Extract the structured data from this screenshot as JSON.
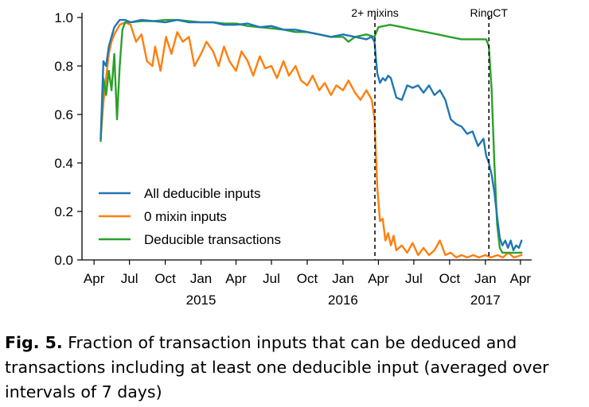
{
  "chart_data": {
    "type": "line",
    "title": "",
    "xlabel": "",
    "ylabel": "",
    "x_range": [
      "2014-03-01",
      "2017-04-30"
    ],
    "ylim": [
      0.0,
      1.0
    ],
    "y_ticks": [
      0.0,
      0.2,
      0.4,
      0.6,
      0.8,
      1.0
    ],
    "y_tick_labels": [
      "0.0",
      "0.2",
      "0.4",
      "0.6",
      "0.8",
      "1.0"
    ],
    "x_ticks": [
      {
        "date": "2014-04-01",
        "label": "Apr"
      },
      {
        "date": "2014-07-01",
        "label": "Jul"
      },
      {
        "date": "2014-10-01",
        "label": "Oct"
      },
      {
        "date": "2015-01-01",
        "label": "Jan"
      },
      {
        "date": "2015-04-01",
        "label": "Apr"
      },
      {
        "date": "2015-07-01",
        "label": "Jul"
      },
      {
        "date": "2015-10-01",
        "label": "Oct"
      },
      {
        "date": "2016-01-01",
        "label": "Jan"
      },
      {
        "date": "2016-04-01",
        "label": "Apr"
      },
      {
        "date": "2016-07-01",
        "label": "Jul"
      },
      {
        "date": "2016-10-01",
        "label": "Oct"
      },
      {
        "date": "2017-01-01",
        "label": "Jan"
      },
      {
        "date": "2017-04-01",
        "label": "Apr"
      }
    ],
    "year_labels": [
      {
        "date": "2015-01-01",
        "label": "2015"
      },
      {
        "date": "2016-01-01",
        "label": "2016"
      },
      {
        "date": "2017-01-01",
        "label": "2017"
      }
    ],
    "grid": false,
    "legend": "lower-left",
    "annotations": [
      {
        "date": "2016-03-23",
        "label": "2+ mixins",
        "style": "dashed-vertical"
      },
      {
        "date": "2017-01-10",
        "label": "RingCT",
        "style": "dashed-vertical"
      }
    ],
    "series": [
      {
        "name": "All deducible inputs",
        "color": "#1f77b4",
        "points": [
          [
            "2014-04-18",
            0.5
          ],
          [
            "2014-04-25",
            0.82
          ],
          [
            "2014-05-02",
            0.8
          ],
          [
            "2014-05-09",
            0.88
          ],
          [
            "2014-05-16",
            0.92
          ],
          [
            "2014-05-23",
            0.96
          ],
          [
            "2014-06-06",
            0.99
          ],
          [
            "2014-06-20",
            0.99
          ],
          [
            "2014-07-04",
            0.98
          ],
          [
            "2014-08-01",
            0.99
          ],
          [
            "2014-09-01",
            0.985
          ],
          [
            "2014-10-01",
            0.98
          ],
          [
            "2014-11-01",
            0.99
          ],
          [
            "2014-12-01",
            0.98
          ],
          [
            "2015-01-01",
            0.98
          ],
          [
            "2015-02-01",
            0.98
          ],
          [
            "2015-03-01",
            0.97
          ],
          [
            "2015-04-01",
            0.97
          ],
          [
            "2015-05-01",
            0.975
          ],
          [
            "2015-06-01",
            0.96
          ],
          [
            "2015-07-01",
            0.965
          ],
          [
            "2015-08-01",
            0.95
          ],
          [
            "2015-09-01",
            0.95
          ],
          [
            "2015-10-01",
            0.94
          ],
          [
            "2015-11-01",
            0.93
          ],
          [
            "2015-12-01",
            0.92
          ],
          [
            "2016-01-01",
            0.93
          ],
          [
            "2016-02-01",
            0.92
          ],
          [
            "2016-03-01",
            0.91
          ],
          [
            "2016-03-15",
            0.92
          ],
          [
            "2016-03-22",
            0.9
          ],
          [
            "2016-03-29",
            0.77
          ],
          [
            "2016-04-05",
            0.73
          ],
          [
            "2016-04-12",
            0.75
          ],
          [
            "2016-04-19",
            0.74
          ],
          [
            "2016-04-26",
            0.76
          ],
          [
            "2016-05-03",
            0.75
          ],
          [
            "2016-05-17",
            0.67
          ],
          [
            "2016-05-31",
            0.66
          ],
          [
            "2016-06-14",
            0.72
          ],
          [
            "2016-06-28",
            0.71
          ],
          [
            "2016-07-12",
            0.72
          ],
          [
            "2016-07-26",
            0.69
          ],
          [
            "2016-08-09",
            0.72
          ],
          [
            "2016-08-23",
            0.68
          ],
          [
            "2016-09-06",
            0.7
          ],
          [
            "2016-09-20",
            0.66
          ],
          [
            "2016-10-04",
            0.58
          ],
          [
            "2016-10-18",
            0.56
          ],
          [
            "2016-11-01",
            0.55
          ],
          [
            "2016-11-15",
            0.52
          ],
          [
            "2016-11-29",
            0.53
          ],
          [
            "2016-12-13",
            0.47
          ],
          [
            "2016-12-27",
            0.5
          ],
          [
            "2017-01-03",
            0.43
          ],
          [
            "2017-01-10",
            0.4
          ],
          [
            "2017-01-17",
            0.35
          ],
          [
            "2017-01-24",
            0.28
          ],
          [
            "2017-01-31",
            0.18
          ],
          [
            "2017-02-07",
            0.09
          ],
          [
            "2017-02-14",
            0.06
          ],
          [
            "2017-02-21",
            0.08
          ],
          [
            "2017-02-28",
            0.05
          ],
          [
            "2017-03-07",
            0.08
          ],
          [
            "2017-03-14",
            0.04
          ],
          [
            "2017-03-21",
            0.06
          ],
          [
            "2017-03-28",
            0.05
          ],
          [
            "2017-04-04",
            0.08
          ]
        ]
      },
      {
        "name": "0 mixin inputs",
        "color": "#ff7f0e",
        "points": [
          [
            "2014-04-18",
            0.5
          ],
          [
            "2014-04-25",
            0.65
          ],
          [
            "2014-05-02",
            0.75
          ],
          [
            "2014-05-09",
            0.85
          ],
          [
            "2014-05-16",
            0.9
          ],
          [
            "2014-05-23",
            0.93
          ],
          [
            "2014-06-06",
            0.97
          ],
          [
            "2014-06-20",
            0.98
          ],
          [
            "2014-07-04",
            0.97
          ],
          [
            "2014-07-18",
            0.9
          ],
          [
            "2014-08-01",
            0.93
          ],
          [
            "2014-08-15",
            0.82
          ],
          [
            "2014-08-29",
            0.8
          ],
          [
            "2014-09-05",
            0.88
          ],
          [
            "2014-09-19",
            0.78
          ],
          [
            "2014-10-03",
            0.92
          ],
          [
            "2014-10-17",
            0.85
          ],
          [
            "2014-11-01",
            0.94
          ],
          [
            "2014-11-15",
            0.9
          ],
          [
            "2014-12-01",
            0.92
          ],
          [
            "2014-12-15",
            0.8
          ],
          [
            "2015-01-01",
            0.85
          ],
          [
            "2015-01-15",
            0.9
          ],
          [
            "2015-02-01",
            0.86
          ],
          [
            "2015-02-15",
            0.8
          ],
          [
            "2015-03-01",
            0.88
          ],
          [
            "2015-03-15",
            0.82
          ],
          [
            "2015-04-01",
            0.78
          ],
          [
            "2015-04-15",
            0.86
          ],
          [
            "2015-05-01",
            0.82
          ],
          [
            "2015-05-15",
            0.76
          ],
          [
            "2015-06-01",
            0.84
          ],
          [
            "2015-06-15",
            0.79
          ],
          [
            "2015-07-01",
            0.8
          ],
          [
            "2015-07-15",
            0.75
          ],
          [
            "2015-08-01",
            0.82
          ],
          [
            "2015-08-15",
            0.76
          ],
          [
            "2015-09-01",
            0.8
          ],
          [
            "2015-09-15",
            0.74
          ],
          [
            "2015-10-01",
            0.72
          ],
          [
            "2015-10-15",
            0.76
          ],
          [
            "2015-11-01",
            0.7
          ],
          [
            "2015-11-15",
            0.73
          ],
          [
            "2015-12-01",
            0.68
          ],
          [
            "2015-12-15",
            0.72
          ],
          [
            "2016-01-01",
            0.7
          ],
          [
            "2016-01-15",
            0.74
          ],
          [
            "2016-02-01",
            0.69
          ],
          [
            "2016-02-15",
            0.66
          ],
          [
            "2016-03-01",
            0.7
          ],
          [
            "2016-03-15",
            0.66
          ],
          [
            "2016-03-22",
            0.58
          ],
          [
            "2016-03-29",
            0.3
          ],
          [
            "2016-04-05",
            0.16
          ],
          [
            "2016-04-12",
            0.17
          ],
          [
            "2016-04-19",
            0.08
          ],
          [
            "2016-04-26",
            0.11
          ],
          [
            "2016-05-03",
            0.06
          ],
          [
            "2016-05-10",
            0.1
          ],
          [
            "2016-05-17",
            0.04
          ],
          [
            "2016-05-31",
            0.06
          ],
          [
            "2016-06-14",
            0.03
          ],
          [
            "2016-06-28",
            0.07
          ],
          [
            "2016-07-12",
            0.02
          ],
          [
            "2016-07-26",
            0.05
          ],
          [
            "2016-08-09",
            0.02
          ],
          [
            "2016-08-23",
            0.04
          ],
          [
            "2016-09-06",
            0.08
          ],
          [
            "2016-09-20",
            0.02
          ],
          [
            "2016-10-04",
            0.03
          ],
          [
            "2016-10-18",
            0.01
          ],
          [
            "2016-11-01",
            0.02
          ],
          [
            "2016-11-15",
            0.01
          ],
          [
            "2016-12-01",
            0.02
          ],
          [
            "2016-12-15",
            0.01
          ],
          [
            "2017-01-01",
            0.02
          ],
          [
            "2017-01-15",
            0.01
          ],
          [
            "2017-02-01",
            0.02
          ],
          [
            "2017-02-15",
            0.01
          ],
          [
            "2017-03-01",
            0.03
          ],
          [
            "2017-03-15",
            0.01
          ],
          [
            "2017-04-04",
            0.02
          ]
        ]
      },
      {
        "name": "Deducible transactions",
        "color": "#2ca02c",
        "points": [
          [
            "2014-04-18",
            0.49
          ],
          [
            "2014-04-25",
            0.75
          ],
          [
            "2014-05-02",
            0.68
          ],
          [
            "2014-05-09",
            0.78
          ],
          [
            "2014-05-16",
            0.7
          ],
          [
            "2014-05-23",
            0.85
          ],
          [
            "2014-05-30",
            0.58
          ],
          [
            "2014-06-06",
            0.8
          ],
          [
            "2014-06-13",
            0.95
          ],
          [
            "2014-06-20",
            0.98
          ],
          [
            "2014-07-04",
            0.98
          ],
          [
            "2014-08-01",
            0.985
          ],
          [
            "2014-09-01",
            0.985
          ],
          [
            "2014-10-01",
            0.99
          ],
          [
            "2014-11-01",
            0.99
          ],
          [
            "2014-12-01",
            0.985
          ],
          [
            "2015-01-01",
            0.98
          ],
          [
            "2015-02-01",
            0.98
          ],
          [
            "2015-03-01",
            0.975
          ],
          [
            "2015-04-01",
            0.975
          ],
          [
            "2015-05-01",
            0.965
          ],
          [
            "2015-06-01",
            0.96
          ],
          [
            "2015-07-01",
            0.955
          ],
          [
            "2015-08-01",
            0.95
          ],
          [
            "2015-09-01",
            0.94
          ],
          [
            "2015-10-01",
            0.94
          ],
          [
            "2015-11-01",
            0.93
          ],
          [
            "2015-12-01",
            0.92
          ],
          [
            "2016-01-01",
            0.92
          ],
          [
            "2016-01-15",
            0.9
          ],
          [
            "2016-02-01",
            0.92
          ],
          [
            "2016-03-01",
            0.93
          ],
          [
            "2016-03-22",
            0.92
          ],
          [
            "2016-04-01",
            0.96
          ],
          [
            "2016-05-01",
            0.97
          ],
          [
            "2016-06-01",
            0.96
          ],
          [
            "2016-07-01",
            0.95
          ],
          [
            "2016-08-01",
            0.94
          ],
          [
            "2016-09-01",
            0.93
          ],
          [
            "2016-10-01",
            0.92
          ],
          [
            "2016-11-01",
            0.91
          ],
          [
            "2016-12-01",
            0.91
          ],
          [
            "2017-01-03",
            0.91
          ],
          [
            "2017-01-10",
            0.88
          ],
          [
            "2017-01-17",
            0.7
          ],
          [
            "2017-01-24",
            0.4
          ],
          [
            "2017-01-31",
            0.15
          ],
          [
            "2017-02-07",
            0.05
          ],
          [
            "2017-02-14",
            0.03
          ],
          [
            "2017-03-01",
            0.03
          ],
          [
            "2017-04-04",
            0.03
          ]
        ]
      }
    ]
  },
  "caption": {
    "label": "Fig. 5.",
    "text": " Fraction of transaction inputs that can be deduced and transactions including at least one deducible input (averaged over intervals of 7 days)"
  }
}
